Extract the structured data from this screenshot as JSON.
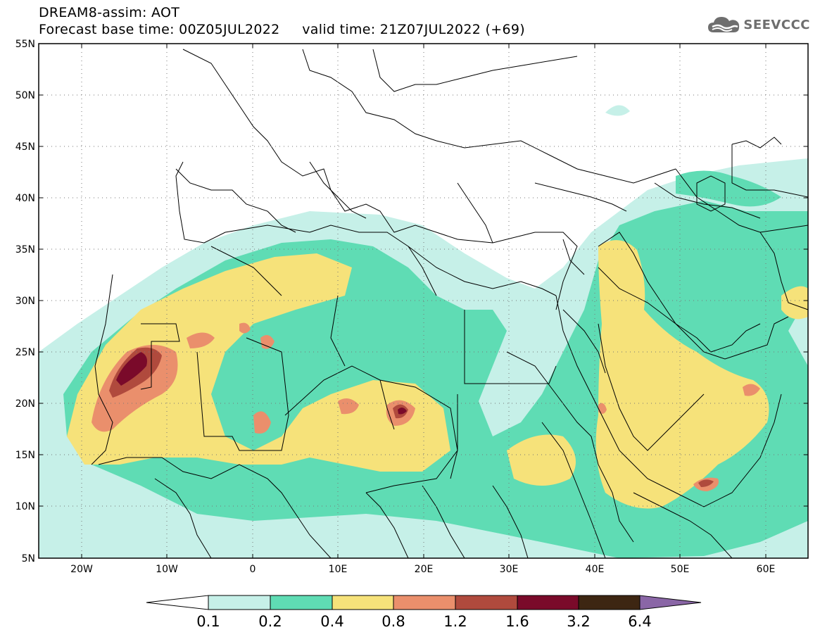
{
  "header": {
    "title": "DREAM8-assim: AOT",
    "subtitle": "Forecast base time: 00Z05JUL2022     valid time: 21Z07JUL2022 (+69)"
  },
  "logo": {
    "text": "SEEVCCC",
    "icon": "cloud-logo-icon"
  },
  "map": {
    "type": "geographic-contour-map",
    "lon_range": [
      -25,
      65
    ],
    "lat_range": [
      5,
      55
    ],
    "lat_ticks": [
      "55N",
      "50N",
      "45N",
      "40N",
      "35N",
      "30N",
      "25N",
      "20N",
      "15N",
      "10N",
      "5N"
    ],
    "lon_ticks": [
      "20W",
      "10W",
      "0",
      "10E",
      "20E",
      "30E",
      "40E",
      "50E",
      "60E"
    ],
    "grid": "dotted",
    "borders": "country boundaries"
  },
  "colorbar": {
    "labels": [
      "0.1",
      "0.2",
      "0.4",
      "0.8",
      "1.2",
      "1.6",
      "3.2",
      "6.4"
    ],
    "colors": [
      "#c6f0e8",
      "#5fdcb4",
      "#f6e27a",
      "#ea8f6c",
      "#b04a3d",
      "#7a0a2a",
      "#3d2612",
      "#8a66a6"
    ],
    "low_arrow_color": "#ffffff",
    "high_arrow_color": "#8a66a6"
  }
}
